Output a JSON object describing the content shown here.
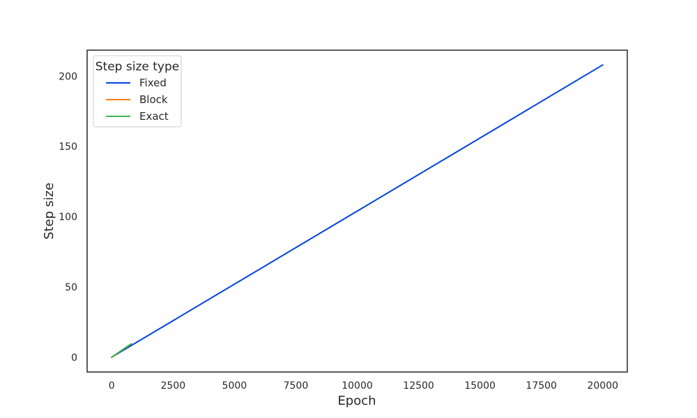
{
  "chart_data": {
    "type": "line",
    "title": "",
    "xlabel": "Epoch",
    "ylabel": "Step size",
    "xlim": [
      -1000,
      21000
    ],
    "ylim": [
      -10.5,
      218.5
    ],
    "xticks": [
      0,
      2500,
      5000,
      7500,
      10000,
      12500,
      15000,
      17500,
      20000
    ],
    "yticks": [
      0,
      50,
      100,
      150,
      200
    ],
    "grid": false,
    "legend": {
      "title": "Step size type",
      "placement": "top-left"
    },
    "series": [
      {
        "name": "Fixed",
        "color": "#0343df",
        "x": [
          0,
          800,
          5000,
          10000,
          15000,
          20000
        ],
        "y": [
          0,
          8.4,
          52,
          104,
          156,
          208
        ]
      },
      {
        "name": "Block",
        "color": "#ff7f0e",
        "x": [
          0,
          800
        ],
        "y": [
          0,
          9.6
        ]
      },
      {
        "name": "Exact",
        "color": "#3cb44b",
        "x": [
          0,
          400,
          800
        ],
        "y": [
          0,
          4.9,
          9.6
        ]
      }
    ]
  }
}
